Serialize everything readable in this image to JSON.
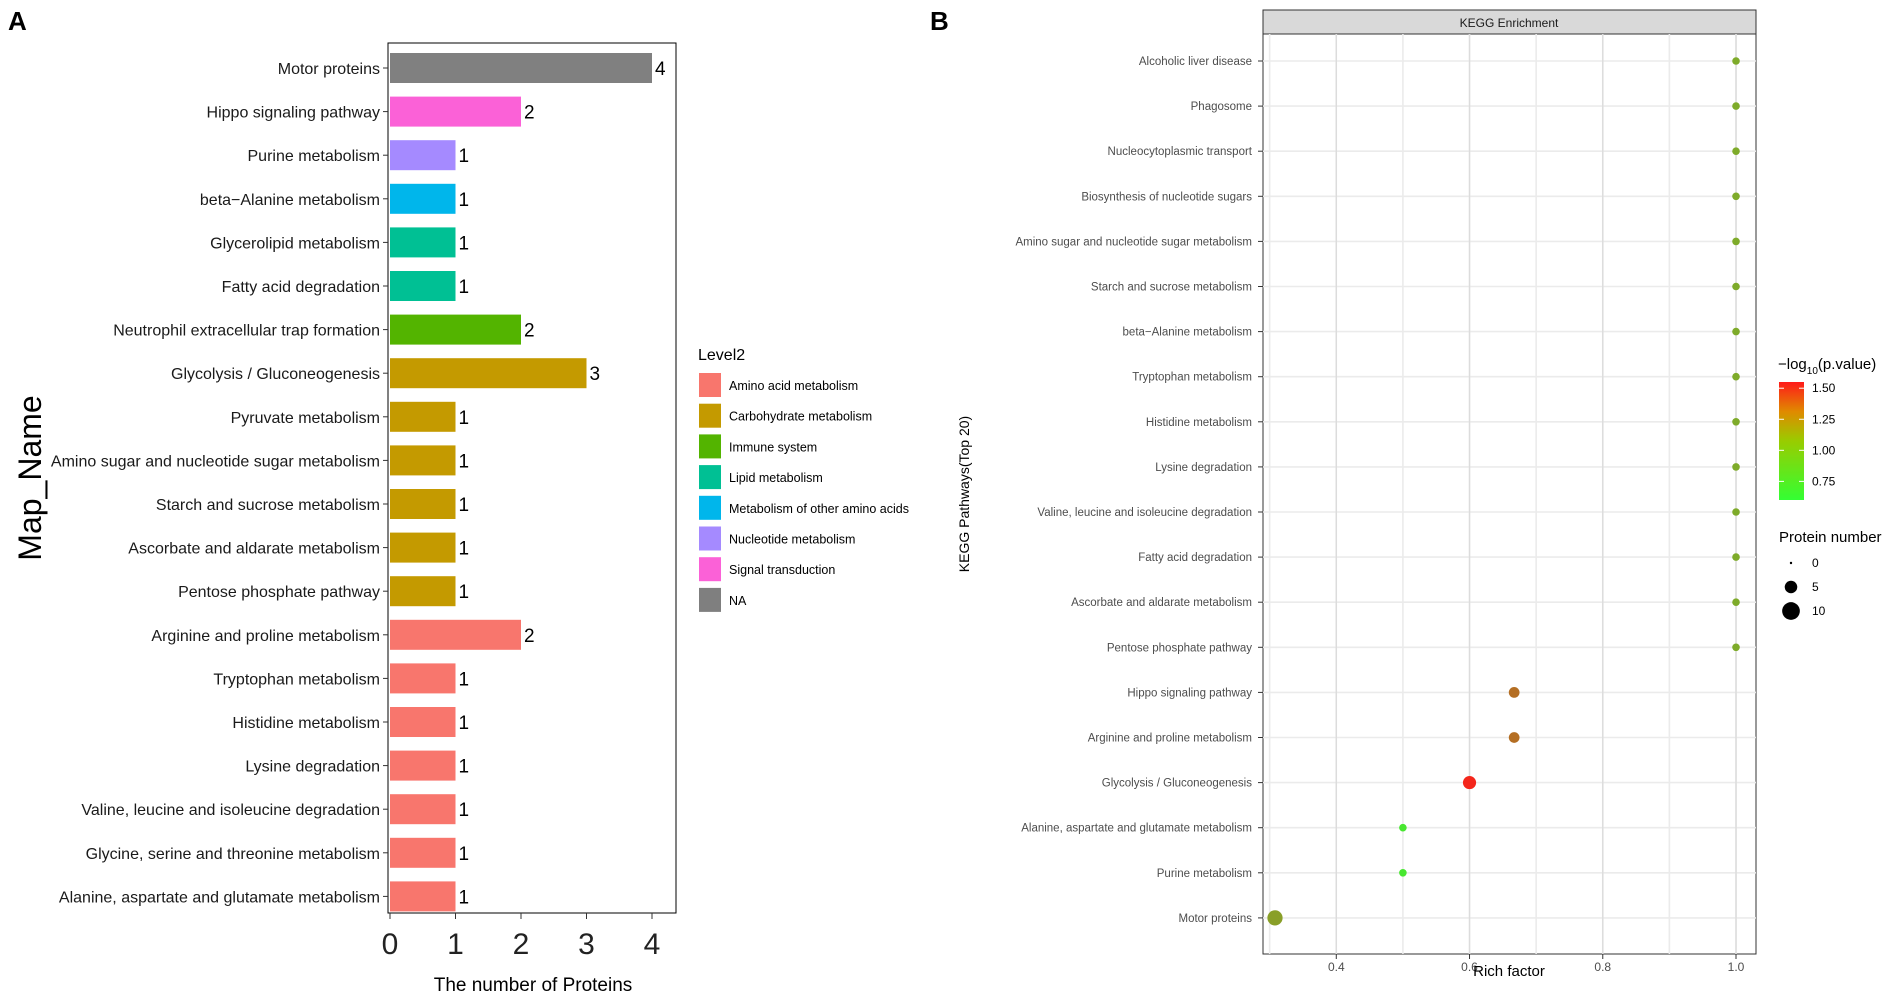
{
  "panel_labels": {
    "a": "A",
    "b": "B"
  },
  "colors": {
    "Amino acid metabolism": "#F8766D",
    "Carbohydrate metabolism": "#C49A00",
    "Immune system": "#53B400",
    "Lipid metabolism": "#00C094",
    "Metabolism of other amino acids": "#00B6EB",
    "Nucleotide metabolism": "#A58AFF",
    "Signal transduction": "#FB61D7",
    "NA": "#7F7F7F"
  },
  "chart_data": [
    {
      "type": "bar",
      "orientation": "horizontal",
      "title": "",
      "xlabel": "The number of Proteins",
      "ylabel": "Map_Name",
      "xlim": [
        0,
        4.4
      ],
      "xticks": [
        0,
        1,
        2,
        3,
        4
      ],
      "grid": false,
      "legend_title": "Level2",
      "legend_position": "right",
      "legend": [
        "Amino acid metabolism",
        "Carbohydrate metabolism",
        "Immune system",
        "Lipid metabolism",
        "Metabolism of other amino acids",
        "Nucleotide metabolism",
        "Signal transduction",
        "NA"
      ],
      "categories": [
        "Motor proteins",
        "Hippo signaling pathway",
        "Purine metabolism",
        "beta−Alanine metabolism",
        "Glycerolipid metabolism",
        "Fatty acid degradation",
        "Neutrophil extracellular trap formation",
        "Glycolysis / Gluconeogenesis",
        "Pyruvate metabolism",
        "Amino sugar and nucleotide sugar metabolism",
        "Starch and sucrose metabolism",
        "Ascorbate and aldarate metabolism",
        "Pentose phosphate pathway",
        "Arginine and proline metabolism",
        "Tryptophan metabolism",
        "Histidine metabolism",
        "Lysine degradation",
        "Valine, leucine and isoleucine degradation",
        "Glycine, serine and threonine metabolism",
        "Alanine, aspartate and glutamate metabolism"
      ],
      "values": [
        4,
        2,
        1,
        1,
        1,
        1,
        2,
        3,
        1,
        1,
        1,
        1,
        1,
        2,
        1,
        1,
        1,
        1,
        1,
        1
      ],
      "groups": [
        "NA",
        "Signal transduction",
        "Nucleotide metabolism",
        "Metabolism of other amino acids",
        "Lipid metabolism",
        "Lipid metabolism",
        "Immune system",
        "Carbohydrate metabolism",
        "Carbohydrate metabolism",
        "Carbohydrate metabolism",
        "Carbohydrate metabolism",
        "Carbohydrate metabolism",
        "Carbohydrate metabolism",
        "Amino acid metabolism",
        "Amino acid metabolism",
        "Amino acid metabolism",
        "Amino acid metabolism",
        "Amino acid metabolism",
        "Amino acid metabolism",
        "Amino acid metabolism"
      ]
    },
    {
      "type": "scatter",
      "title": "KEGG Enrichment",
      "xlabel": "Rich factor",
      "ylabel": "KEGG Pathways(Top 20)",
      "xlim": [
        0.29,
        1.03
      ],
      "xticks": [
        0.4,
        0.6,
        0.8,
        1.0
      ],
      "xtick_labels": [
        "0.4",
        "0.6",
        "0.8",
        "1.0"
      ],
      "grid": true,
      "categories": [
        "Alcoholic liver disease",
        "Phagosome",
        "Nucleocytoplasmic transport",
        "Biosynthesis of nucleotide sugars",
        "Amino sugar and nucleotide sugar metabolism",
        "Starch and sucrose metabolism",
        "beta−Alanine metabolism",
        "Tryptophan metabolism",
        "Histidine metabolism",
        "Lysine degradation",
        "Valine, leucine and isoleucine degradation",
        "Fatty acid degradation",
        "Ascorbate and aldarate metabolism",
        "Pentose phosphate pathway",
        "Hippo signaling pathway",
        "Arginine and proline metabolism",
        "Glycolysis / Gluconeogenesis",
        "Alanine, aspartate and glutamate metabolism",
        "Purine metabolism",
        "Motor proteins"
      ],
      "rich_factor": [
        1.0,
        1.0,
        1.0,
        1.0,
        1.0,
        1.0,
        1.0,
        1.0,
        1.0,
        1.0,
        1.0,
        1.0,
        1.0,
        1.0,
        0.667,
        0.667,
        0.6,
        0.5,
        0.5,
        0.308
      ],
      "neg_log10_p": [
        0.95,
        0.95,
        0.95,
        0.95,
        0.95,
        0.95,
        0.95,
        0.95,
        0.95,
        0.95,
        0.95,
        0.95,
        0.95,
        0.95,
        1.2,
        1.2,
        1.5,
        0.7,
        0.7,
        1.0
      ],
      "protein_number": [
        1,
        1,
        1,
        1,
        1,
        1,
        1,
        1,
        1,
        1,
        1,
        1,
        1,
        1,
        2,
        2,
        3,
        1,
        1,
        4
      ],
      "color_legend": {
        "title_prefix": "−log",
        "title_sub": "10",
        "title_suffix": "(p.value)",
        "range": [
          0.6,
          1.55
        ],
        "ticks": [
          0.75,
          1.0,
          1.25,
          1.5
        ],
        "tick_labels": [
          "0.75",
          "1.00",
          "1.25",
          "1.50"
        ],
        "low_color": "#33FF33",
        "high_color": "#FF1A1A"
      },
      "size_legend": {
        "title": "Protein number",
        "values": [
          0,
          5,
          10
        ],
        "labels": [
          "0",
          "5",
          "10"
        ]
      }
    }
  ]
}
